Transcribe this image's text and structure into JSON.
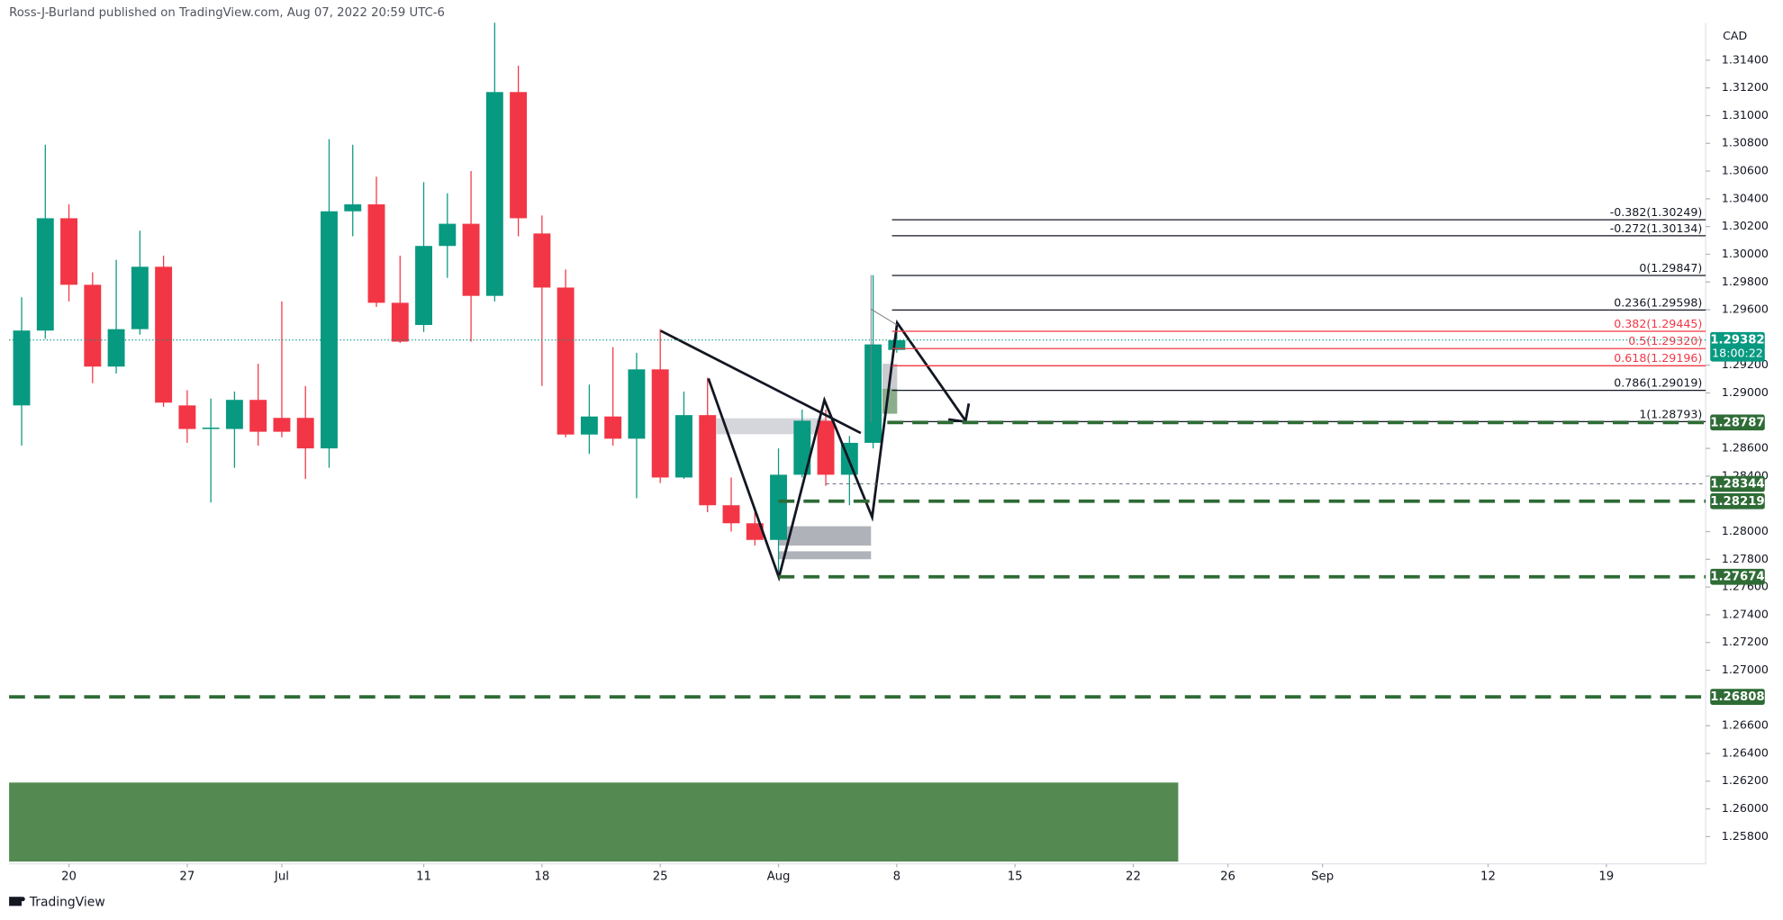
{
  "chart_data": {
    "type": "candlestick",
    "title": "Ross-J-Burland published on TradingView.com, Aug 07, 2022 20:59 UTC-6",
    "currency": "CAD",
    "brand": "TradingView",
    "up_color": "#089981",
    "down_color": "#f23645",
    "xlim": [
      -0.53,
      71.2
    ],
    "ylim": [
      1.2562,
      1.3167
    ],
    "open": [
      1.2891,
      1.2945,
      1.3026,
      1.2978,
      1.2919,
      1.2946,
      1.2991,
      1.2891,
      1.2874,
      1.2874,
      1.2895,
      1.2882,
      1.2882,
      1.286,
      1.3031,
      1.3036,
      1.2965,
      1.2949,
      1.3006,
      1.3022,
      1.297,
      1.3117,
      1.3015,
      1.2976,
      1.287,
      1.2883,
      1.2867,
      1.2917,
      1.2839,
      1.2884,
      1.2819,
      1.2806,
      1.2794,
      1.2841,
      1.288,
      1.2841,
      1.2864,
      1.2931
    ],
    "high": [
      1.2969,
      1.3079,
      1.3036,
      1.2987,
      1.2996,
      1.3017,
      1.2999,
      1.2902,
      1.2896,
      1.2901,
      1.2921,
      1.2966,
      1.2905,
      1.3083,
      1.3079,
      1.3056,
      1.2999,
      1.3052,
      1.3044,
      1.306,
      1.3167,
      1.3136,
      1.3028,
      1.2989,
      1.2906,
      1.2933,
      1.2929,
      1.2946,
      1.2901,
      1.2911,
      1.2839,
      1.2814,
      1.286,
      1.2888,
      1.2888,
      1.2869,
      1.2985,
      1.2946
    ],
    "low": [
      1.2862,
      1.2939,
      1.2966,
      1.2907,
      1.2914,
      1.2942,
      1.289,
      1.2864,
      1.2821,
      1.2846,
      1.2862,
      1.2868,
      1.2838,
      1.2846,
      1.3013,
      1.2962,
      1.2936,
      1.2944,
      1.2983,
      1.2937,
      1.2966,
      1.3013,
      1.2905,
      1.2868,
      1.2856,
      1.2862,
      1.2824,
      1.2835,
      1.2838,
      1.2814,
      1.28,
      1.279,
      1.2767,
      1.2839,
      1.2833,
      1.2819,
      1.286,
      1.2929
    ],
    "close": [
      1.2945,
      1.3026,
      1.2978,
      1.2919,
      1.2946,
      1.2991,
      1.2893,
      1.2874,
      1.2875,
      1.2895,
      1.2872,
      1.2872,
      1.286,
      1.3031,
      1.3036,
      1.2965,
      1.2937,
      1.3006,
      1.3022,
      1.297,
      1.3117,
      1.3026,
      1.2976,
      1.287,
      1.2883,
      1.2867,
      1.2917,
      1.2839,
      1.2884,
      1.2819,
      1.2806,
      1.2794,
      1.2841,
      1.288,
      1.2841,
      1.2864,
      1.2935,
      1.2938
    ],
    "xticks": [
      {
        "value": 2,
        "label": "20"
      },
      {
        "value": 7,
        "label": "27"
      },
      {
        "value": 11,
        "label": "Jul"
      },
      {
        "value": 17,
        "label": "11"
      },
      {
        "value": 22,
        "label": "18"
      },
      {
        "value": 27,
        "label": "25"
      },
      {
        "value": 32,
        "label": "Aug"
      },
      {
        "value": 37,
        "label": "8"
      },
      {
        "value": 42,
        "label": "15"
      },
      {
        "value": 47,
        "label": "22"
      },
      {
        "value": 51,
        "label": "26"
      },
      {
        "value": 55,
        "label": "Sep"
      },
      {
        "value": 62,
        "label": "12"
      },
      {
        "value": 67,
        "label": "19"
      }
    ],
    "yticks": [
      {
        "value": 1.314,
        "label": "1.31400"
      },
      {
        "value": 1.312,
        "label": "1.31200"
      },
      {
        "value": 1.31,
        "label": "1.31000"
      },
      {
        "value": 1.308,
        "label": "1.30800"
      },
      {
        "value": 1.306,
        "label": "1.30600"
      },
      {
        "value": 1.304,
        "label": "1.30400"
      },
      {
        "value": 1.302,
        "label": "1.30200"
      },
      {
        "value": 1.3,
        "label": "1.30000"
      },
      {
        "value": 1.298,
        "label": "1.29800"
      },
      {
        "value": 1.296,
        "label": "1.29600"
      },
      {
        "value": 1.292,
        "label": "1.29200"
      },
      {
        "value": 1.29,
        "label": "1.29000"
      },
      {
        "value": 1.286,
        "label": "1.28600"
      },
      {
        "value": 1.284,
        "label": "1.28400"
      },
      {
        "value": 1.28,
        "label": "1.28000"
      },
      {
        "value": 1.278,
        "label": "1.27800"
      },
      {
        "value": 1.276,
        "label": "1.27600"
      },
      {
        "value": 1.274,
        "label": "1.27400"
      },
      {
        "value": 1.272,
        "label": "1.27200"
      },
      {
        "value": 1.27,
        "label": "1.27000"
      },
      {
        "value": 1.266,
        "label": "1.26600"
      },
      {
        "value": 1.264,
        "label": "1.26400"
      },
      {
        "value": 1.262,
        "label": "1.26200"
      },
      {
        "value": 1.26,
        "label": "1.26000"
      },
      {
        "value": 1.258,
        "label": "1.25800"
      }
    ],
    "fib": [
      {
        "value": 1.30249,
        "label": "-0.382(1.30249)",
        "color": "#131722"
      },
      {
        "value": 1.30134,
        "label": "-0.272(1.30134)",
        "color": "#131722"
      },
      {
        "value": 1.29847,
        "label": "0(1.29847)",
        "color": "#131722"
      },
      {
        "value": 1.29598,
        "label": "0.236(1.29598)",
        "color": "#131722"
      },
      {
        "value": 1.29445,
        "label": "0.382(1.29445)",
        "color": "#f23645"
      },
      {
        "value": 1.2932,
        "label": "0.5(1.29320)",
        "color": "#f23645"
      },
      {
        "value": 1.29196,
        "label": "0.618(1.29196)",
        "color": "#f23645"
      },
      {
        "value": 1.29019,
        "label": "0.786(1.29019)",
        "color": "#131722"
      },
      {
        "value": 1.28793,
        "label": "1(1.28793)",
        "color": "#131722"
      }
    ],
    "fib_from": 36.8,
    "levels": [
      {
        "value": 1.28787,
        "label": "1.28787",
        "from": 36.6,
        "color": "#2e6b35",
        "style": "dash"
      },
      {
        "value": 1.28344,
        "label": "1.28344",
        "from": 34,
        "color": "#6b7280",
        "style": "thin"
      },
      {
        "value": 1.28219,
        "label": "1.28219",
        "from": 32,
        "color": "#2e6b35",
        "style": "dash"
      },
      {
        "value": 1.27674,
        "label": "1.27674",
        "from": 32,
        "color": "#2e6b35",
        "style": "dash"
      },
      {
        "value": 1.26808,
        "label": "1.26808",
        "from": -0.53,
        "color": "#2e6b35",
        "style": "dash"
      }
    ],
    "price": {
      "value": 1.29382,
      "label": "1.29382",
      "countdown": "18:00:22",
      "color": "#089981"
    },
    "zone": {
      "top": 1.2619,
      "to": 48.9,
      "color": "#548a52"
    }
  }
}
